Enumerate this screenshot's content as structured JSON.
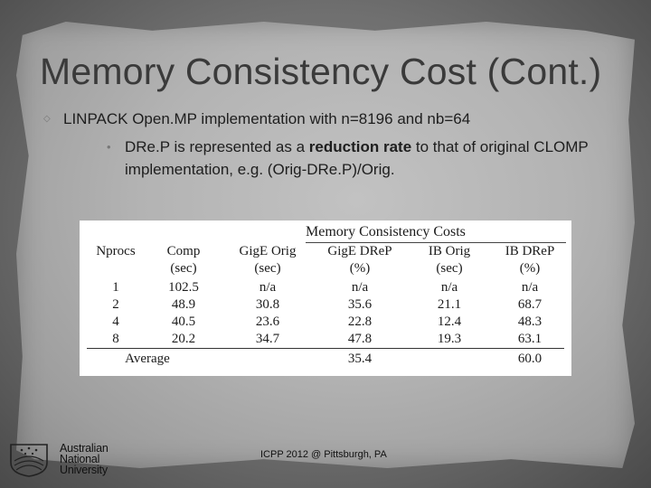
{
  "slide": {
    "title": "Memory Consistency Cost (Cont.)",
    "bullet1": "LINPACK Open.MP implementation with n=8196 and nb=64",
    "bullet2_pre": "DRe.P is represented as a ",
    "bullet2_bold": "reduction rate",
    "bullet2_post": " to that of original CLOMP implementation, e.g. (Orig-DRe.P)/Orig.",
    "footer": "ICPP 2012 @ Pittsburgh, PA"
  },
  "logo": {
    "line1": "Australian",
    "line2": "National",
    "line3": "University"
  },
  "table": {
    "title": "Memory Consistency Costs",
    "headers": [
      "Nprocs",
      "Comp",
      "GigE Orig",
      "GigE DReP",
      "IB Orig",
      "IB DReP"
    ],
    "units": [
      "",
      "(sec)",
      "(sec)",
      "(%)",
      "(sec)",
      "(%)"
    ],
    "rows": [
      [
        "1",
        "102.5",
        "n/a",
        "n/a",
        "n/a",
        "n/a"
      ],
      [
        "2",
        "48.9",
        "30.8",
        "35.6",
        "21.1",
        "68.7"
      ],
      [
        "4",
        "40.5",
        "23.6",
        "22.8",
        "12.4",
        "48.3"
      ],
      [
        "8",
        "20.2",
        "34.7",
        "47.8",
        "19.3",
        "63.1"
      ]
    ],
    "average_label": "Average",
    "average_gige": "35.4",
    "average_ib": "60.0"
  }
}
